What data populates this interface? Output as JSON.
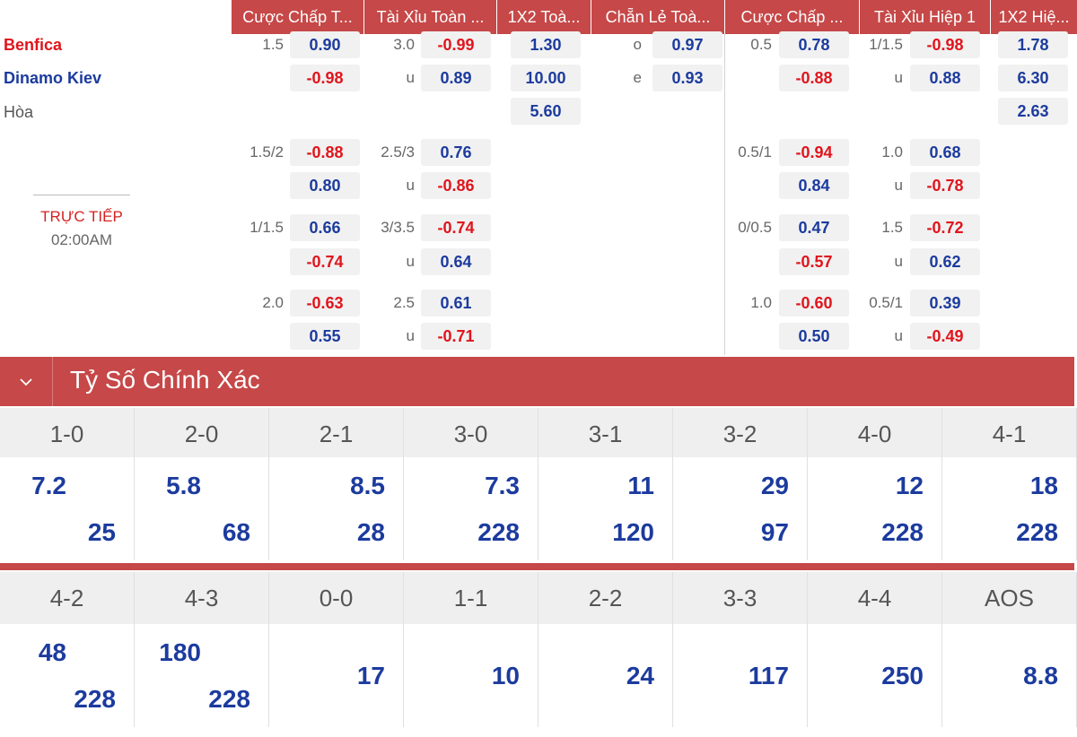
{
  "headers": [
    "Cược Chấp T...",
    "Tài Xỉu Toàn ...",
    "1X2 Toà...",
    "Chẵn Lẻ Toà...",
    "Cược Chấp ...",
    "Tài Xỉu Hiệp 1",
    "1X2 Hiệ..."
  ],
  "teams": {
    "home": "Benfica",
    "away": "Dinamo Kiev",
    "draw": "Hòa"
  },
  "live": {
    "status": "TRỰC TIẾP",
    "time": "02:00AM"
  },
  "main": {
    "ah": {
      "line": "1.5",
      "home": "0.90",
      "away": "-0.98"
    },
    "ou": {
      "line": "3.0",
      "over": "-0.99",
      "under_label": "u",
      "under": "0.89"
    },
    "x12": {
      "home": "1.30",
      "away": "10.00",
      "draw": "5.60"
    },
    "oe": {
      "o_label": "o",
      "odd": "0.97",
      "e_label": "e",
      "even": "0.93"
    },
    "h1ah": {
      "line": "0.5",
      "home": "0.78",
      "away": "-0.88"
    },
    "h1ou": {
      "line": "1/1.5",
      "over": "-0.98",
      "under_label": "u",
      "under": "0.88"
    },
    "h1x12": {
      "home": "1.78",
      "away": "6.30",
      "draw": "2.63"
    }
  },
  "alt": [
    {
      "ah_line": "1.5/2",
      "ah_home": "-0.88",
      "ah_away": "0.80",
      "ou_line": "2.5/3",
      "ou_over": "0.76",
      "ou_u": "u",
      "ou_under": "-0.86",
      "h1ah_line": "0.5/1",
      "h1ah_home": "-0.94",
      "h1ah_away": "0.84",
      "h1ou_line": "1.0",
      "h1ou_over": "0.68",
      "h1ou_u": "u",
      "h1ou_under": "-0.78"
    },
    {
      "ah_line": "1/1.5",
      "ah_home": "0.66",
      "ah_away": "-0.74",
      "ou_line": "3/3.5",
      "ou_over": "-0.74",
      "ou_u": "u",
      "ou_under": "0.64",
      "h1ah_line": "0/0.5",
      "h1ah_home": "0.47",
      "h1ah_away": "-0.57",
      "h1ou_line": "1.5",
      "h1ou_over": "-0.72",
      "h1ou_u": "u",
      "h1ou_under": "0.62"
    },
    {
      "ah_line": "2.0",
      "ah_home": "-0.63",
      "ah_away": "0.55",
      "ou_line": "2.5",
      "ou_over": "0.61",
      "ou_u": "u",
      "ou_under": "-0.71",
      "h1ah_line": "1.0",
      "h1ah_home": "-0.60",
      "h1ah_away": "0.50",
      "h1ou_line": "0.5/1",
      "h1ou_over": "0.39",
      "h1ou_u": "u",
      "h1ou_under": "-0.49"
    }
  ],
  "correct_score": {
    "title": "Tỷ Số Chính Xác",
    "row1": [
      {
        "score": "1-0",
        "home": "7.2",
        "away": "25"
      },
      {
        "score": "2-0",
        "home": "5.8",
        "away": "68"
      },
      {
        "score": "2-1",
        "home": "8.5",
        "away": "28"
      },
      {
        "score": "3-0",
        "home": "7.3",
        "away": "228"
      },
      {
        "score": "3-1",
        "home": "11",
        "away": "120"
      },
      {
        "score": "3-2",
        "home": "29",
        "away": "97"
      },
      {
        "score": "4-0",
        "home": "12",
        "away": "228"
      },
      {
        "score": "4-1",
        "home": "18",
        "away": "228"
      }
    ],
    "row2": [
      {
        "score": "4-2",
        "home": "48",
        "away": "228"
      },
      {
        "score": "4-3",
        "home": "180",
        "away": "228"
      },
      {
        "score": "0-0",
        "single": "17"
      },
      {
        "score": "1-1",
        "single": "10"
      },
      {
        "score": "2-2",
        "single": "24"
      },
      {
        "score": "3-3",
        "single": "117"
      },
      {
        "score": "4-4",
        "single": "250"
      },
      {
        "score": "AOS",
        "single": "8.8"
      }
    ]
  },
  "colors": {
    "header": "#c64848",
    "negative": "#e0151c",
    "positive": "#1c3b9e",
    "live": "#d42121"
  }
}
